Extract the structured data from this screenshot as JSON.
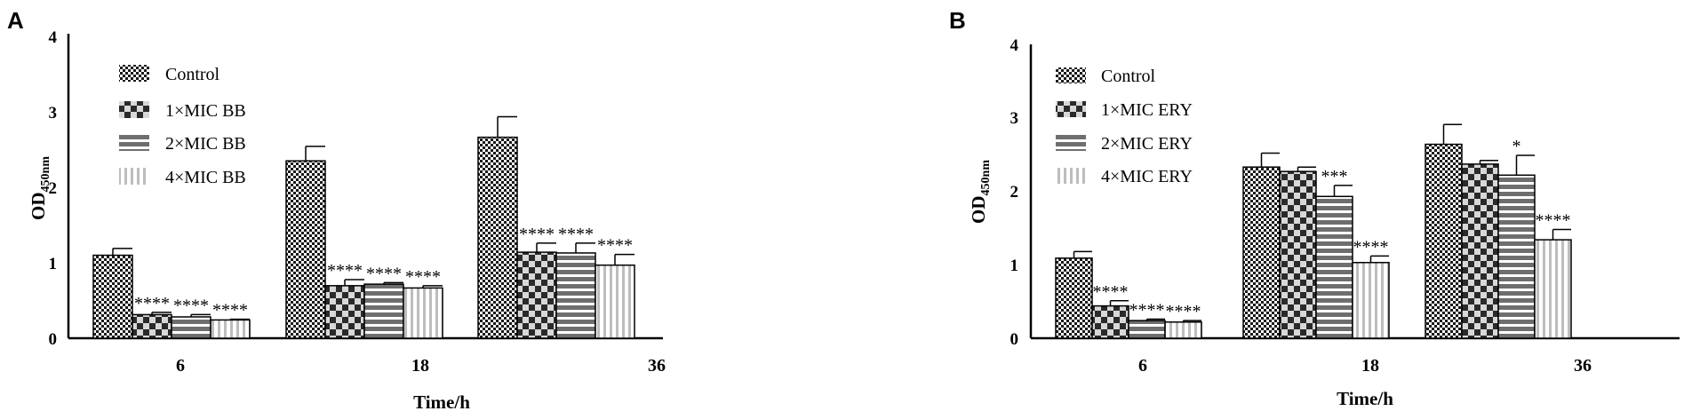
{
  "panels": [
    {
      "letter": "A",
      "chart_data": {
        "type": "bar",
        "title": "",
        "xlabel": "Time/h",
        "ylabel": "OD",
        "ylabel_subscript": "450nm",
        "categories": [
          "6",
          "18",
          "36"
        ],
        "ylim": [
          0,
          4
        ],
        "yticks": [
          "0",
          "1",
          "2",
          "3",
          "4"
        ],
        "legend_position": "top-left",
        "series": [
          {
            "name": "Control",
            "pattern": "checker-fine",
            "values": [
              1.09,
              2.33,
              2.64
            ],
            "errors": [
              0.09,
              0.19,
              0.27
            ],
            "sig": [
              "",
              "",
              ""
            ]
          },
          {
            "name": "1×MIC BB",
            "pattern": "checker-coarse",
            "values": [
              0.31,
              0.69,
              1.13
            ],
            "errors": [
              0.03,
              0.08,
              0.12
            ],
            "sig": [
              "****",
              "****",
              "****"
            ]
          },
          {
            "name": "2×MIC BB",
            "pattern": "horizontal-stripes",
            "values": [
              0.28,
              0.71,
              1.12
            ],
            "errors": [
              0.03,
              0.02,
              0.13
            ],
            "sig": [
              "****",
              "****",
              "****"
            ]
          },
          {
            "name": "4×MIC BB",
            "pattern": "vertical-stripes",
            "values": [
              0.24,
              0.66,
              0.96
            ],
            "errors": [
              0.01,
              0.03,
              0.14
            ],
            "sig": [
              "****",
              "****",
              "****"
            ]
          }
        ]
      }
    },
    {
      "letter": "B",
      "chart_data": {
        "type": "bar",
        "title": "",
        "xlabel": "Time/h",
        "ylabel": "OD",
        "ylabel_subscript": "450nm",
        "categories": [
          "6",
          "18",
          "36"
        ],
        "ylim": [
          0,
          4
        ],
        "yticks": [
          "0",
          "1",
          "2",
          "3",
          "4"
        ],
        "legend_position": "top-left",
        "series": [
          {
            "name": "Control",
            "pattern": "checker-fine",
            "values": [
              1.09,
              2.33,
              2.64
            ],
            "errors": [
              0.09,
              0.19,
              0.27
            ],
            "sig": [
              "",
              "",
              ""
            ]
          },
          {
            "name": "1×MIC ERY",
            "pattern": "checker-coarse",
            "values": [
              0.44,
              2.27,
              2.37
            ],
            "errors": [
              0.07,
              0.06,
              0.05
            ],
            "sig": [
              "****",
              "",
              ""
            ]
          },
          {
            "name": "2×MIC ERY",
            "pattern": "horizontal-stripes",
            "values": [
              0.24,
              1.93,
              2.22
            ],
            "errors": [
              0.02,
              0.15,
              0.27
            ],
            "sig": [
              "****",
              "***",
              "*"
            ]
          },
          {
            "name": "4×MIC ERY",
            "pattern": "vertical-stripes",
            "values": [
              0.22,
              1.03,
              1.34
            ],
            "errors": [
              0.02,
              0.09,
              0.14
            ],
            "sig": [
              "****",
              "****",
              "****"
            ]
          }
        ]
      }
    }
  ]
}
